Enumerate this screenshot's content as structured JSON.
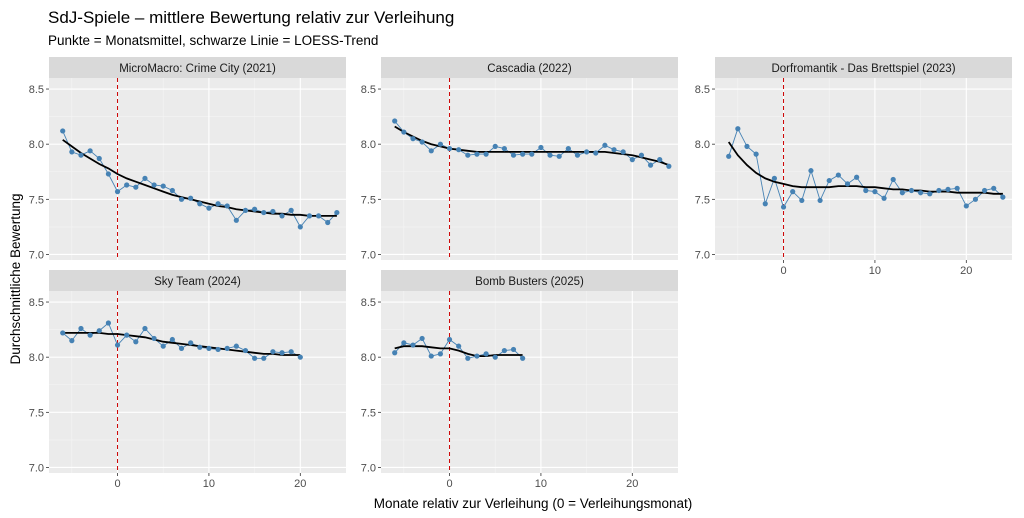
{
  "chart_data": {
    "type": "line",
    "title": "SdJ-Spiele – mittlere Bewertung relativ zur Verleihung",
    "subtitle": "Punkte = Monatsmittel, schwarze Linie = LOESS-Trend",
    "xlabel": "Monate relativ zur Verleihung (0 = Verleihungsmonat)",
    "ylabel": "Durchschnittliche Bewertung",
    "xlim": [
      -7.5,
      25
    ],
    "ylim": [
      6.95,
      8.6
    ],
    "xticks": [
      0,
      10,
      20
    ],
    "xtick_labels": [
      "0",
      "10",
      "20"
    ],
    "yticks": [
      7.0,
      7.5,
      8.0,
      8.5
    ],
    "ytick_labels": [
      "7.0",
      "7.5",
      "8.0",
      "8.5"
    ],
    "reference_line_x": 0,
    "colors": {
      "points": "#4682b4",
      "trend": "#000000",
      "reference": "#cc0000",
      "panel": "#ebebeb",
      "strip": "#d9d9d9",
      "grid": "#ffffff"
    },
    "panels": [
      {
        "label": "MicroMacro: Crime City (2021)",
        "x": [
          -6,
          -5,
          -4,
          -3,
          -2,
          -1,
          0,
          1,
          2,
          3,
          4,
          5,
          6,
          7,
          8,
          9,
          10,
          11,
          12,
          13,
          14,
          15,
          16,
          17,
          18,
          19,
          20,
          21,
          22,
          23,
          24
        ],
        "y": [
          8.12,
          7.93,
          7.9,
          7.94,
          7.87,
          7.73,
          7.57,
          7.63,
          7.61,
          7.69,
          7.63,
          7.62,
          7.58,
          7.5,
          7.51,
          7.46,
          7.42,
          7.46,
          7.44,
          7.31,
          7.4,
          7.41,
          7.38,
          7.39,
          7.35,
          7.4,
          7.25,
          7.35,
          7.35,
          7.29,
          7.38
        ],
        "trend": [
          8.04,
          7.98,
          7.92,
          7.87,
          7.82,
          7.78,
          7.73,
          7.69,
          7.66,
          7.63,
          7.6,
          7.57,
          7.54,
          7.52,
          7.5,
          7.48,
          7.46,
          7.44,
          7.43,
          7.41,
          7.4,
          7.39,
          7.38,
          7.37,
          7.37,
          7.36,
          7.36,
          7.35,
          7.35,
          7.35,
          7.35
        ]
      },
      {
        "label": "Cascadia (2022)",
        "x": [
          -6,
          -5,
          -4,
          -3,
          -2,
          -1,
          0,
          1,
          2,
          3,
          4,
          5,
          6,
          7,
          8,
          9,
          10,
          11,
          12,
          13,
          14,
          15,
          16,
          17,
          18,
          19,
          20,
          21,
          22,
          23,
          24
        ],
        "y": [
          8.21,
          8.11,
          8.05,
          8.02,
          7.94,
          8.0,
          7.96,
          7.95,
          7.9,
          7.91,
          7.91,
          7.98,
          7.96,
          7.9,
          7.91,
          7.91,
          7.97,
          7.9,
          7.89,
          7.96,
          7.9,
          7.93,
          7.92,
          7.99,
          7.95,
          7.93,
          7.86,
          7.9,
          7.81,
          7.86,
          7.8
        ],
        "trend": [
          8.16,
          8.11,
          8.07,
          8.03,
          8.0,
          7.98,
          7.96,
          7.95,
          7.94,
          7.93,
          7.93,
          7.93,
          7.93,
          7.93,
          7.93,
          7.93,
          7.93,
          7.93,
          7.93,
          7.93,
          7.93,
          7.93,
          7.93,
          7.93,
          7.92,
          7.91,
          7.9,
          7.88,
          7.86,
          7.84,
          7.81
        ]
      },
      {
        "label": "Dorfromantik - Das Brettspiel (2023)",
        "x": [
          -6,
          -5,
          -4,
          -3,
          -2,
          -1,
          0,
          1,
          2,
          3,
          4,
          5,
          6,
          7,
          8,
          9,
          10,
          11,
          12,
          13,
          14,
          15,
          16,
          17,
          18,
          19,
          20,
          21,
          22,
          23,
          24
        ],
        "y": [
          7.89,
          8.14,
          7.98,
          7.91,
          7.46,
          7.69,
          7.43,
          7.57,
          7.49,
          7.76,
          7.49,
          7.67,
          7.72,
          7.64,
          7.7,
          7.58,
          7.57,
          7.51,
          7.68,
          7.56,
          7.58,
          7.56,
          7.55,
          7.58,
          7.59,
          7.6,
          7.44,
          7.5,
          7.58,
          7.6,
          7.52
        ],
        "trend": [
          8.02,
          7.9,
          7.81,
          7.74,
          7.69,
          7.66,
          7.64,
          7.62,
          7.61,
          7.61,
          7.61,
          7.61,
          7.62,
          7.62,
          7.62,
          7.61,
          7.61,
          7.6,
          7.59,
          7.59,
          7.58,
          7.58,
          7.57,
          7.57,
          7.57,
          7.56,
          7.56,
          7.56,
          7.56,
          7.55,
          7.55
        ]
      },
      {
        "label": "Sky Team (2024)",
        "x": [
          -6,
          -5,
          -4,
          -3,
          -2,
          -1,
          0,
          1,
          2,
          3,
          4,
          5,
          6,
          7,
          8,
          9,
          10,
          11,
          12,
          13,
          14,
          15,
          16,
          17,
          18,
          19,
          20
        ],
        "y": [
          8.22,
          8.15,
          8.26,
          8.2,
          8.24,
          8.31,
          8.11,
          8.2,
          8.14,
          8.26,
          8.17,
          8.1,
          8.16,
          8.08,
          8.13,
          8.09,
          8.08,
          8.07,
          8.08,
          8.1,
          8.06,
          7.99,
          7.99,
          8.05,
          8.04,
          8.05,
          8.0
        ],
        "trend": [
          8.22,
          8.22,
          8.22,
          8.22,
          8.22,
          8.21,
          8.21,
          8.2,
          8.19,
          8.18,
          8.16,
          8.14,
          8.13,
          8.12,
          8.11,
          8.1,
          8.09,
          8.08,
          8.07,
          8.06,
          8.05,
          8.04,
          8.03,
          8.03,
          8.02,
          8.02,
          8.02
        ]
      },
      {
        "label": "Bomb Busters (2025)",
        "x": [
          -6,
          -5,
          -4,
          -3,
          -2,
          -1,
          0,
          1,
          2,
          3,
          4,
          5,
          6,
          7,
          8
        ],
        "y": [
          8.04,
          8.13,
          8.11,
          8.17,
          8.01,
          8.03,
          8.16,
          8.1,
          7.99,
          8.01,
          8.03,
          8.0,
          8.06,
          8.07,
          7.99
        ],
        "trend": [
          8.08,
          8.1,
          8.1,
          8.1,
          8.09,
          8.08,
          8.08,
          8.06,
          8.03,
          8.01,
          8.01,
          8.02,
          8.02,
          8.02,
          8.02
        ]
      }
    ]
  }
}
